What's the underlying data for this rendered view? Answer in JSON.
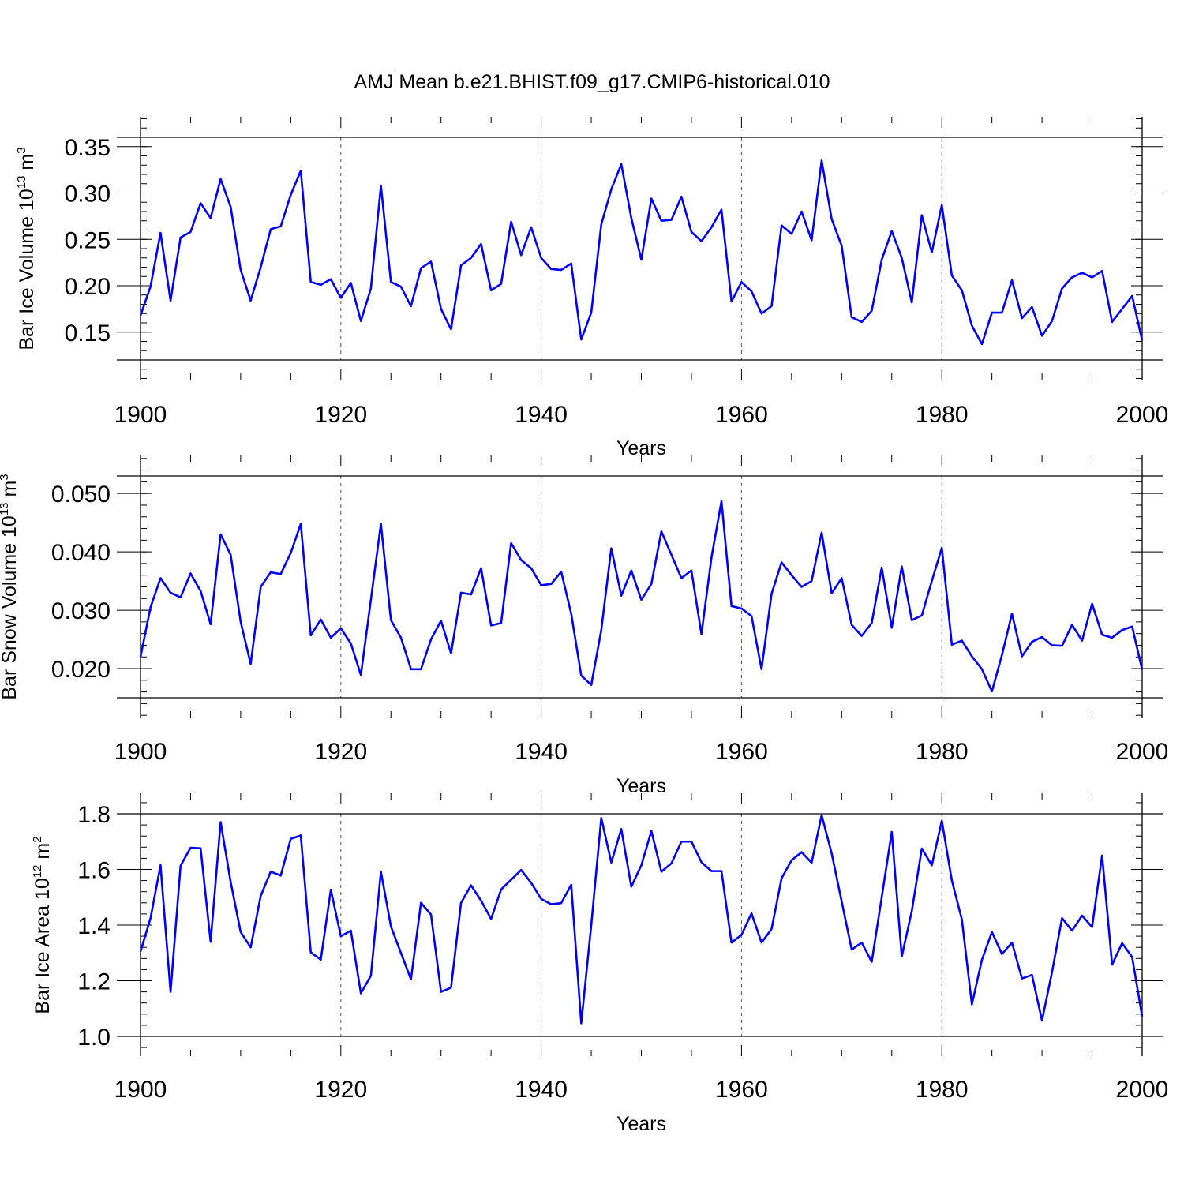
{
  "title": "AMJ Mean b.e21.BHIST.f09_g17.CMIP6-historical.010",
  "chart_data": [
    {
      "type": "line",
      "name": "ice-volume",
      "ylabel": {
        "prefix": "Bar Ice Volume 10",
        "exp1": "13",
        "mid": " m",
        "exp2": "3"
      },
      "xlabel": "Years",
      "xlim": [
        1900,
        2000
      ],
      "ylim": [
        0.12,
        0.36
      ],
      "x_ticks": [
        "1900",
        "1920",
        "1940",
        "1960",
        "1980",
        "2000"
      ],
      "y_ticks": [
        0.15,
        0.2,
        0.25,
        0.3,
        0.35
      ],
      "y_tick_labels": [
        "0.15",
        "0.20",
        "0.25",
        "0.30",
        "0.35"
      ],
      "y_minor_step": 0.01,
      "years_start": 1900,
      "values": [
        0.168,
        0.199,
        0.257,
        0.184,
        0.252,
        0.258,
        0.289,
        0.273,
        0.315,
        0.285,
        0.217,
        0.184,
        0.22,
        0.261,
        0.264,
        0.298,
        0.324,
        0.204,
        0.201,
        0.207,
        0.187,
        0.203,
        0.162,
        0.197,
        0.308,
        0.204,
        0.199,
        0.178,
        0.219,
        0.226,
        0.175,
        0.153,
        0.222,
        0.23,
        0.245,
        0.195,
        0.202,
        0.269,
        0.233,
        0.263,
        0.23,
        0.218,
        0.217,
        0.224,
        0.142,
        0.171,
        0.266,
        0.304,
        0.331,
        0.273,
        0.228,
        0.294,
        0.27,
        0.271,
        0.296,
        0.258,
        0.248,
        0.263,
        0.282,
        0.183,
        0.204,
        0.194,
        0.17,
        0.178,
        0.265,
        0.256,
        0.28,
        0.249,
        0.335,
        0.272,
        0.243,
        0.166,
        0.161,
        0.173,
        0.228,
        0.259,
        0.23,
        0.182,
        0.276,
        0.236,
        0.287,
        0.211,
        0.195,
        0.157,
        0.137,
        0.171,
        0.171,
        0.206,
        0.165,
        0.177,
        0.146,
        0.162,
        0.197,
        0.209,
        0.214,
        0.209,
        0.216,
        0.161,
        0.175,
        0.189,
        0.141
      ]
    },
    {
      "type": "line",
      "name": "snow-volume",
      "ylabel": {
        "prefix": "Bar Snow Volume 10",
        "exp1": "13",
        "mid": " m",
        "exp2": "3"
      },
      "xlabel": "Years",
      "xlim": [
        1900,
        2000
      ],
      "ylim": [
        0.015,
        0.053
      ],
      "x_ticks": [
        "1900",
        "1920",
        "1940",
        "1960",
        "1980",
        "2000"
      ],
      "y_ticks": [
        0.02,
        0.03,
        0.04,
        0.05
      ],
      "y_tick_labels": [
        "0.020",
        "0.030",
        "0.040",
        "0.050"
      ],
      "y_minor_step": 0.002,
      "years_start": 1900,
      "values": [
        0.022,
        0.0305,
        0.0355,
        0.033,
        0.0322,
        0.0363,
        0.0333,
        0.0276,
        0.043,
        0.0395,
        0.028,
        0.0208,
        0.034,
        0.0365,
        0.0362,
        0.0398,
        0.0448,
        0.0257,
        0.0284,
        0.0253,
        0.0269,
        0.0243,
        0.0189,
        0.0318,
        0.0448,
        0.0283,
        0.0253,
        0.0199,
        0.0199,
        0.025,
        0.0282,
        0.0226,
        0.033,
        0.0327,
        0.0372,
        0.0274,
        0.0278,
        0.0415,
        0.0386,
        0.0372,
        0.0343,
        0.0345,
        0.0366,
        0.0294,
        0.0188,
        0.0172,
        0.0266,
        0.0406,
        0.0325,
        0.0368,
        0.0318,
        0.0345,
        0.0435,
        0.0395,
        0.0355,
        0.0368,
        0.0259,
        0.039,
        0.0487,
        0.0307,
        0.0303,
        0.029,
        0.0199,
        0.0328,
        0.0382,
        0.036,
        0.034,
        0.035,
        0.0433,
        0.0329,
        0.0355,
        0.0275,
        0.0256,
        0.0278,
        0.0373,
        0.027,
        0.0375,
        0.0283,
        0.0291,
        0.035,
        0.0407,
        0.0241,
        0.0248,
        0.0221,
        0.0199,
        0.0161,
        0.0223,
        0.0294,
        0.0221,
        0.0246,
        0.0254,
        0.024,
        0.0239,
        0.0275,
        0.0248,
        0.0311,
        0.0258,
        0.0253,
        0.0266,
        0.0272,
        0.0198
      ]
    },
    {
      "type": "line",
      "name": "ice-area",
      "ylabel": {
        "prefix": "Bar Ice Area 10",
        "exp1": "12",
        "mid": " m",
        "exp2": "2"
      },
      "xlabel": "Years",
      "xlim": [
        1900,
        2000
      ],
      "ylim": [
        1.0,
        1.8
      ],
      "y_extend_top": 1.87,
      "x_ticks": [
        "1900",
        "1920",
        "1940",
        "1960",
        "1980",
        "2000"
      ],
      "y_ticks": [
        1.0,
        1.2,
        1.4,
        1.6,
        1.8
      ],
      "y_tick_labels": [
        "1.0",
        "1.2",
        "1.4",
        "1.6",
        "1.8"
      ],
      "y_minor_step": 0.04,
      "years_start": 1900,
      "values": [
        1.305,
        1.425,
        1.615,
        1.16,
        1.613,
        1.678,
        1.676,
        1.34,
        1.77,
        1.555,
        1.375,
        1.32,
        1.505,
        1.592,
        1.578,
        1.71,
        1.722,
        1.302,
        1.276,
        1.527,
        1.36,
        1.38,
        1.155,
        1.218,
        1.592,
        1.395,
        1.3,
        1.205,
        1.48,
        1.438,
        1.16,
        1.175,
        1.48,
        1.543,
        1.488,
        1.422,
        1.528,
        1.563,
        1.598,
        1.552,
        1.494,
        1.475,
        1.479,
        1.545,
        1.047,
        1.4,
        1.785,
        1.625,
        1.745,
        1.538,
        1.615,
        1.738,
        1.592,
        1.622,
        1.7,
        1.7,
        1.626,
        1.594,
        1.594,
        1.337,
        1.365,
        1.442,
        1.337,
        1.386,
        1.568,
        1.633,
        1.662,
        1.624,
        1.795,
        1.658,
        1.485,
        1.312,
        1.337,
        1.268,
        1.5,
        1.735,
        1.287,
        1.45,
        1.675,
        1.615,
        1.775,
        1.56,
        1.42,
        1.115,
        1.275,
        1.375,
        1.296,
        1.337,
        1.208,
        1.221,
        1.057,
        1.231,
        1.425,
        1.38,
        1.434,
        1.393,
        1.65,
        1.258,
        1.335,
        1.285,
        1.072
      ]
    }
  ]
}
